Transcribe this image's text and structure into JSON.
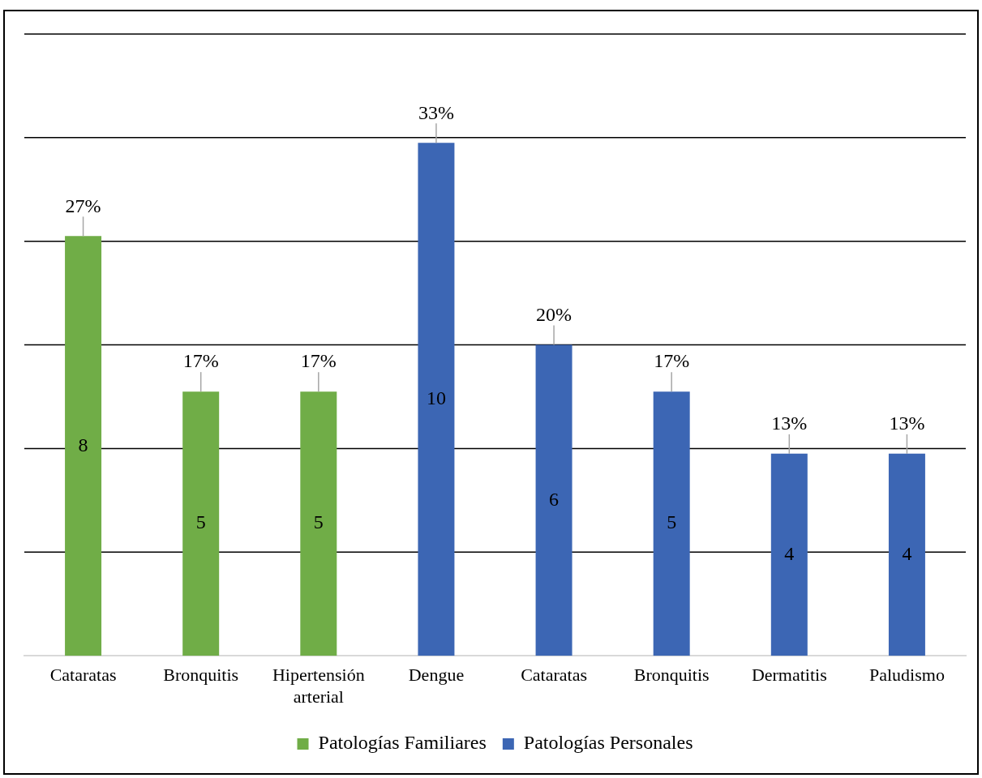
{
  "chart_data": {
    "type": "bar",
    "categories": [
      "Cataratas",
      "Bronquitis",
      "Hipertensión arterial",
      "Dengue",
      "Cataratas",
      "Bronquitis",
      "Dermatitis",
      "Paludismo"
    ],
    "series": [
      {
        "name": "Patologías Familiares",
        "color": "#70ad47",
        "values": [
          27,
          17,
          17,
          null,
          null,
          null,
          null,
          null
        ],
        "value_labels": [
          "27%",
          "17%",
          "17%",
          null,
          null,
          null,
          null,
          null
        ]
      },
      {
        "name": "Patologías Personales",
        "color": "#3c66b4",
        "values": [
          null,
          null,
          null,
          33,
          20,
          17,
          13,
          13
        ],
        "value_labels": [
          null,
          null,
          null,
          "33%",
          "20%",
          "17%",
          "13%",
          "13%"
        ]
      }
    ],
    "annotations": [
      "8",
      "5",
      "5",
      "10",
      "6",
      "5",
      "4",
      "4"
    ],
    "tick_labels": "x",
    "grid": "y",
    "legend": "bottom"
  }
}
